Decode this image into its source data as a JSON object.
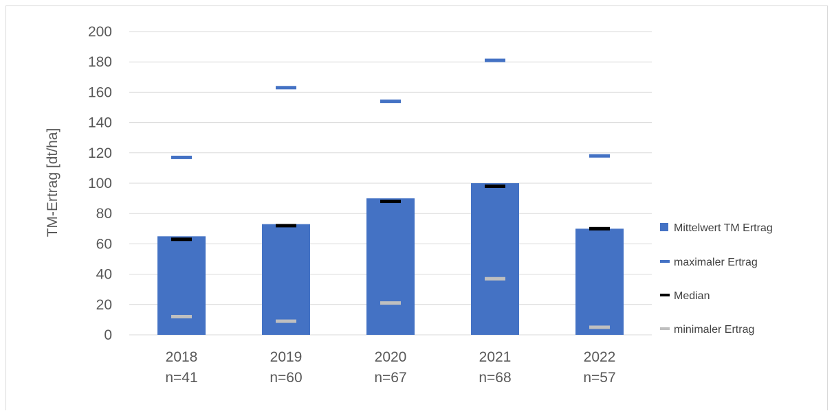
{
  "chart_data": {
    "type": "bar",
    "title": "",
    "ylabel": "TM-Ertrag [dt/ha]",
    "xlabel": "",
    "ylim": [
      0,
      200
    ],
    "yticks": [
      0,
      20,
      40,
      60,
      80,
      100,
      120,
      140,
      160,
      180,
      200
    ],
    "categories": [
      {
        "year": "2018",
        "n": "n=41"
      },
      {
        "year": "2019",
        "n": "n=60"
      },
      {
        "year": "2020",
        "n": "n=67"
      },
      {
        "year": "2021",
        "n": "n=68"
      },
      {
        "year": "2022",
        "n": "n=57"
      }
    ],
    "grid": true,
    "legend_position": "right",
    "series": [
      {
        "name": "Mittelwert TM Ertrag",
        "kind": "bar",
        "color": "#4472c4",
        "values": [
          65,
          73,
          90,
          100,
          70
        ]
      },
      {
        "name": "maximaler Ertrag",
        "kind": "marker",
        "color": "#4472c4",
        "values": [
          117,
          163,
          154,
          181,
          118
        ]
      },
      {
        "name": "Median",
        "kind": "marker",
        "color": "#000000",
        "values": [
          63,
          72,
          88,
          98,
          70
        ]
      },
      {
        "name": "minimaler Ertrag",
        "kind": "marker",
        "color": "#bfbfbf",
        "values": [
          12,
          9,
          21,
          37,
          5
        ]
      }
    ]
  }
}
